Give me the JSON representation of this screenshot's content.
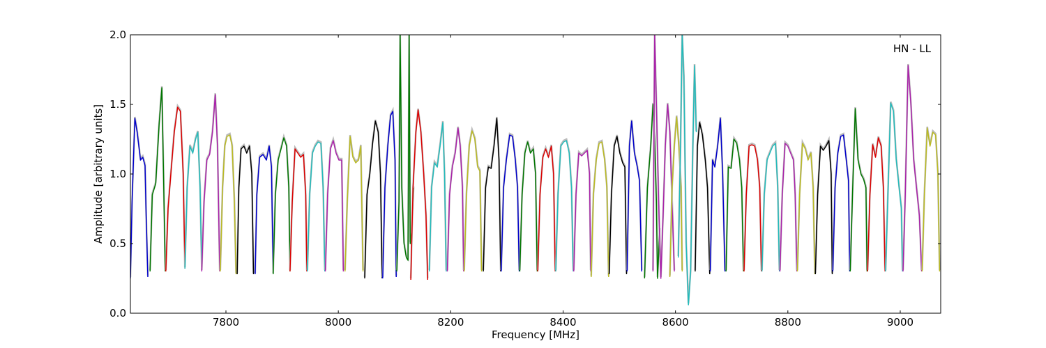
{
  "chart_data": {
    "type": "line",
    "title": "",
    "xlabel": "Frequency [MHz]",
    "ylabel": "Amplitude [arbitrary units]",
    "xlim": [
      7630,
      9072
    ],
    "ylim": [
      0.0,
      2.0
    ],
    "x_ticks": [
      "7800",
      "8000",
      "8200",
      "8400",
      "8600",
      "8800",
      "9000"
    ],
    "y_ticks": [
      "0.0",
      "0.5",
      "1.0",
      "1.5",
      "2.0"
    ],
    "annotation": "HN - LL",
    "grid": false,
    "legend": "none",
    "colors": [
      "#0000cc",
      "#007700",
      "#dd0000",
      "#22bbbb",
      "#aa22aa",
      "#bbbb22",
      "#000000"
    ],
    "shadow_color": "#bbbbbb",
    "series": [
      {
        "x": [
          7630,
          7633,
          7638,
          7642,
          7648,
          7652,
          7656,
          7658,
          7661
        ],
        "y": [
          0.25,
          0.8,
          1.4,
          1.3,
          1.1,
          1.12,
          1.06,
          0.7,
          0.26
        ],
        "color": "#0000cc"
      },
      {
        "x": [
          7665,
          7669,
          7675,
          7681,
          7686,
          7689,
          7692
        ],
        "y": [
          0.3,
          0.85,
          0.93,
          1.35,
          1.62,
          1.0,
          0.3
        ],
        "color": "#007700"
      },
      {
        "x": [
          7693,
          7697,
          7702,
          7708,
          7714,
          7719,
          7724,
          7727
        ],
        "y": [
          0.3,
          0.75,
          1.0,
          1.3,
          1.48,
          1.45,
          1.0,
          0.32
        ],
        "color": "#dd0000"
      },
      {
        "x": [
          7727,
          7731,
          7736,
          7741,
          7746,
          7750,
          7754,
          7757
        ],
        "y": [
          0.32,
          0.9,
          1.2,
          1.15,
          1.25,
          1.3,
          0.9,
          0.32
        ],
        "color": "#22bbbb"
      },
      {
        "x": [
          7757,
          7761,
          7766,
          7771,
          7776,
          7781,
          7785,
          7789
        ],
        "y": [
          0.3,
          0.8,
          1.1,
          1.14,
          1.3,
          1.57,
          1.2,
          0.3
        ],
        "color": "#aa22aa"
      },
      {
        "x": [
          7790,
          7794,
          7798,
          7802,
          7807,
          7811,
          7815,
          7818
        ],
        "y": [
          0.3,
          0.9,
          1.2,
          1.27,
          1.28,
          1.2,
          0.8,
          0.28
        ],
        "color": "#bbbb22"
      },
      {
        "x": [
          7820,
          7823,
          7827,
          7832,
          7837,
          7842,
          7846,
          7849
        ],
        "y": [
          0.28,
          0.9,
          1.18,
          1.2,
          1.15,
          1.2,
          1.0,
          0.28
        ],
        "color": "#000000"
      },
      {
        "x": [
          7852,
          7855,
          7860,
          7866,
          7872,
          7877,
          7881,
          7884
        ],
        "y": [
          0.28,
          0.85,
          1.12,
          1.14,
          1.1,
          1.2,
          1.05,
          0.3
        ],
        "color": "#0000cc"
      },
      {
        "x": [
          7884,
          7888,
          7893,
          7898,
          7903,
          7908,
          7912,
          7914
        ],
        "y": [
          0.28,
          0.85,
          1.1,
          1.18,
          1.26,
          1.2,
          0.9,
          0.3
        ],
        "color": "#007700"
      },
      {
        "x": [
          7914,
          7918,
          7923,
          7928,
          7933,
          7938,
          7942,
          7944
        ],
        "y": [
          0.3,
          0.8,
          1.18,
          1.15,
          1.12,
          1.14,
          0.85,
          0.3
        ],
        "color": "#dd0000"
      },
      {
        "x": [
          7945,
          7949,
          7954,
          7959,
          7964,
          7969,
          7973,
          7976
        ],
        "y": [
          0.3,
          0.85,
          1.15,
          1.2,
          1.23,
          1.22,
          0.9,
          0.3
        ],
        "color": "#22bbbb"
      },
      {
        "x": [
          7977,
          7981,
          7986,
          7991,
          7996,
          8001,
          8006,
          8009
        ],
        "y": [
          0.3,
          0.85,
          1.18,
          1.24,
          1.15,
          1.1,
          1.1,
          0.3
        ],
        "color": "#aa22aa"
      },
      {
        "x": [
          8012,
          8016,
          8021,
          8026,
          8031,
          8036,
          8040,
          8044
        ],
        "y": [
          0.3,
          0.8,
          1.27,
          1.12,
          1.08,
          1.1,
          1.2,
          0.3
        ],
        "color": "#bbbb22"
      },
      {
        "x": [
          8047,
          8051,
          8056,
          8061,
          8066,
          8071,
          8075,
          8078
        ],
        "y": [
          0.25,
          0.85,
          1.0,
          1.22,
          1.38,
          1.3,
          1.0,
          0.25
        ],
        "color": "#000000"
      },
      {
        "x": [
          8079,
          8083,
          8088,
          8093,
          8097,
          8101,
          8103
        ],
        "y": [
          0.25,
          0.9,
          1.2,
          1.42,
          1.45,
          1.1,
          0.26
        ],
        "color": "#0000cc"
      },
      {
        "x": [
          8104,
          8108,
          8110,
          8113,
          8117,
          8121,
          8124,
          8126,
          8128,
          8131,
          8134
        ],
        "y": [
          0.3,
          0.8,
          2.0,
          0.9,
          0.5,
          0.4,
          0.38,
          2.0,
          0.5,
          0.6,
          0.9
        ],
        "color": "#007700"
      },
      {
        "x": [
          8129,
          8133,
          8138,
          8142,
          8147,
          8152,
          8156,
          8159
        ],
        "y": [
          0.24,
          0.9,
          1.3,
          1.46,
          1.3,
          1.0,
          0.7,
          0.24
        ],
        "color": "#dd0000"
      },
      {
        "x": [
          8162,
          8166,
          8171,
          8176,
          8181,
          8186,
          8189,
          8192
        ],
        "y": [
          0.3,
          0.9,
          1.08,
          1.05,
          1.2,
          1.37,
          1.0,
          0.3
        ],
        "color": "#22bbbb"
      },
      {
        "x": [
          8194,
          8198,
          8203,
          8208,
          8213,
          8217,
          8221,
          8223
        ],
        "y": [
          0.3,
          0.85,
          1.05,
          1.15,
          1.33,
          1.2,
          0.9,
          0.3
        ],
        "color": "#aa22aa"
      },
      {
        "x": [
          8224,
          8228,
          8233,
          8238,
          8243,
          8248,
          8252,
          8255
        ],
        "y": [
          0.3,
          0.85,
          1.2,
          1.31,
          1.25,
          1.05,
          1.02,
          0.3
        ],
        "color": "#bbbb22"
      },
      {
        "x": [
          8258,
          8262,
          8267,
          8272,
          8277,
          8282,
          8286,
          8289
        ],
        "y": [
          0.3,
          0.9,
          1.05,
          1.04,
          1.2,
          1.4,
          1.1,
          0.3
        ],
        "color": "#000000"
      },
      {
        "x": [
          8290,
          8294,
          8299,
          8305,
          8310,
          8315,
          8319,
          8322
        ],
        "y": [
          0.3,
          0.9,
          1.1,
          1.28,
          1.27,
          1.1,
          0.9,
          0.3
        ],
        "color": "#0000cc"
      },
      {
        "x": [
          8323,
          8327,
          8332,
          8337,
          8342,
          8347,
          8351,
          8354
        ],
        "y": [
          0.3,
          0.85,
          1.15,
          1.23,
          1.15,
          1.18,
          1.0,
          0.3
        ],
        "color": "#007700"
      },
      {
        "x": [
          8355,
          8359,
          8364,
          8369,
          8374,
          8379,
          8383,
          8386
        ],
        "y": [
          0.3,
          0.85,
          1.12,
          1.18,
          1.12,
          1.2,
          1.0,
          0.3
        ],
        "color": "#dd0000"
      },
      {
        "x": [
          8387,
          8391,
          8396,
          8401,
          8406,
          8411,
          8415,
          8418
        ],
        "y": [
          0.3,
          0.85,
          1.2,
          1.23,
          1.24,
          1.15,
          0.9,
          0.3
        ],
        "color": "#22bbbb"
      },
      {
        "x": [
          8419,
          8423,
          8428,
          8433,
          8438,
          8443,
          8447,
          8449
        ],
        "y": [
          0.3,
          0.85,
          1.15,
          1.13,
          1.15,
          1.17,
          1.0,
          0.3
        ],
        "color": "#aa22aa"
      },
      {
        "x": [
          8450,
          8454,
          8459,
          8464,
          8469,
          8474,
          8478,
          8481
        ],
        "y": [
          0.26,
          0.85,
          1.1,
          1.22,
          1.23,
          1.1,
          0.9,
          0.26
        ],
        "color": "#bbbb22"
      },
      {
        "x": [
          8482,
          8486,
          8491,
          8496,
          8501,
          8506,
          8510,
          8513
        ],
        "y": [
          0.28,
          0.85,
          1.2,
          1.27,
          1.15,
          1.08,
          1.05,
          0.28
        ],
        "color": "#000000"
      },
      {
        "x": [
          8514,
          8518,
          8522,
          8527,
          8532,
          8536,
          8540
        ],
        "y": [
          0.3,
          1.2,
          1.38,
          1.15,
          1.05,
          0.95,
          0.3
        ],
        "color": "#0000cc"
      },
      {
        "x": [
          8545,
          8550,
          8556,
          8560,
          8563,
          8566,
          8568,
          8572
        ],
        "y": [
          0.25,
          0.9,
          1.2,
          1.5,
          1.25,
          0.8,
          0.25,
          0.6
        ],
        "color": "#007700"
      },
      {
        "x": [
          8560,
          8563,
          8566,
          8570,
          8574,
          8578,
          8582,
          8586,
          8590,
          8594,
          8598
        ],
        "y": [
          0.3,
          2.0,
          1.5,
          0.8,
          0.25,
          0.7,
          1.2,
          1.5,
          1.3,
          0.8,
          0.3
        ],
        "color": "#aa22aa"
      },
      {
        "x": [
          8590,
          8594,
          8598,
          8602,
          8606,
          8610,
          8612
        ],
        "y": [
          0.26,
          0.9,
          1.2,
          1.41,
          1.2,
          0.9,
          0.3
        ],
        "color": "#bbbb22"
      },
      {
        "x": [
          8605,
          8609,
          8612,
          8615,
          8619,
          8623,
          8627,
          8631,
          8634,
          8637
        ],
        "y": [
          0.4,
          1.2,
          2.0,
          1.7,
          0.5,
          0.06,
          0.3,
          1.2,
          1.78,
          1.3
        ],
        "color": "#22bbbb"
      },
      {
        "x": [
          8635,
          8639,
          8643,
          8648,
          8653,
          8657,
          8661
        ],
        "y": [
          0.3,
          1.2,
          1.37,
          1.28,
          1.1,
          0.9,
          0.28
        ],
        "color": "#000000"
      },
      {
        "x": [
          8662,
          8666,
          8670,
          8675,
          8680,
          8684,
          8688
        ],
        "y": [
          0.3,
          1.1,
          1.05,
          1.2,
          1.4,
          1.0,
          0.3
        ],
        "color": "#0000cc"
      },
      {
        "x": [
          8690,
          8694,
          8699,
          8704,
          8709,
          8714,
          8718,
          8721
        ],
        "y": [
          0.3,
          1.05,
          1.04,
          1.25,
          1.22,
          1.1,
          0.9,
          0.3
        ],
        "color": "#007700"
      },
      {
        "x": [
          8722,
          8726,
          8731,
          8736,
          8741,
          8746,
          8750,
          8753
        ],
        "y": [
          0.3,
          0.85,
          1.2,
          1.21,
          1.2,
          1.1,
          0.9,
          0.3
        ],
        "color": "#dd0000"
      },
      {
        "x": [
          8754,
          8758,
          8763,
          8768,
          8773,
          8778,
          8782,
          8785
        ],
        "y": [
          0.3,
          0.85,
          1.1,
          1.15,
          1.2,
          1.22,
          0.9,
          0.3
        ],
        "color": "#22bbbb"
      },
      {
        "x": [
          8786,
          8790,
          8795,
          8800,
          8805,
          8810,
          8813,
          8816
        ],
        "y": [
          0.3,
          0.85,
          1.22,
          1.2,
          1.15,
          1.1,
          0.85,
          0.3
        ],
        "color": "#aa22aa"
      },
      {
        "x": [
          8817,
          8821,
          8826,
          8831,
          8836,
          8841,
          8845,
          8848
        ],
        "y": [
          0.3,
          0.85,
          1.22,
          1.18,
          1.1,
          1.15,
          0.9,
          0.28
        ],
        "color": "#bbbb22"
      },
      {
        "x": [
          8849,
          8853,
          8858,
          8863,
          8868,
          8873,
          8877,
          8879
        ],
        "y": [
          0.28,
          0.85,
          1.2,
          1.17,
          1.2,
          1.24,
          1.0,
          0.28
        ],
        "color": "#000000"
      },
      {
        "x": [
          8880,
          8884,
          8889,
          8894,
          8899,
          8904,
          8908,
          8910
        ],
        "y": [
          0.3,
          0.9,
          1.15,
          1.27,
          1.28,
          1.1,
          0.95,
          0.3
        ],
        "color": "#0000cc"
      },
      {
        "x": [
          8911,
          8915,
          8920,
          8925,
          8930,
          8935,
          8939,
          8941
        ],
        "y": [
          0.3,
          0.85,
          1.47,
          1.1,
          1.0,
          0.96,
          0.9,
          0.3
        ],
        "color": "#007700"
      },
      {
        "x": [
          8942,
          8946,
          8951,
          8956,
          8961,
          8966,
          8970,
          8973
        ],
        "y": [
          0.3,
          0.85,
          1.21,
          1.12,
          1.26,
          1.2,
          0.9,
          0.3
        ],
        "color": "#dd0000"
      },
      {
        "x": [
          8974,
          8978,
          8983,
          8988,
          8993,
          8998,
          9002,
          9004
        ],
        "y": [
          0.3,
          0.85,
          1.51,
          1.45,
          1.1,
          0.9,
          0.75,
          0.3
        ],
        "color": "#22bbbb"
      },
      {
        "x": [
          9005,
          9009,
          9014,
          9019,
          9024,
          9029,
          9034,
          9038
        ],
        "y": [
          0.3,
          0.85,
          1.78,
          1.5,
          1.1,
          0.9,
          0.7,
          0.3
        ],
        "color": "#aa22aa"
      },
      {
        "x": [
          9039,
          9043,
          9048,
          9053,
          9058,
          9063,
          9067,
          9070
        ],
        "y": [
          0.3,
          0.85,
          1.33,
          1.2,
          1.3,
          1.28,
          1.0,
          0.3
        ],
        "color": "#bbbb22"
      }
    ]
  }
}
